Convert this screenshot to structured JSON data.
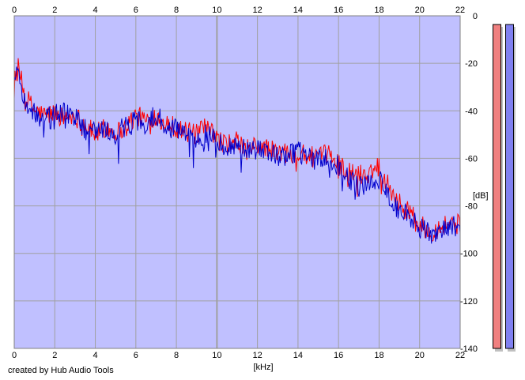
{
  "footer": {
    "credit": "created by Hub Audio Tools"
  },
  "colors": {
    "background": "#ffffff",
    "plot_background": "#c0c0ff",
    "grid": "#a0a0a0",
    "frame": "#808080",
    "left_channel": "#ff0000",
    "right_channel": "#0000cc",
    "left_meter": "#f08080",
    "right_meter": "#8080f0",
    "meter_shadow": "#c0c0c0"
  },
  "chart_data": {
    "type": "area",
    "title": "",
    "xlabel": "[kHz]",
    "ylabel": "[dB]",
    "xlim": [
      0,
      22
    ],
    "ylim": [
      -140,
      0
    ],
    "x_ticks": [
      "0",
      "2",
      "4",
      "6",
      "8",
      "10",
      "12",
      "14",
      "16",
      "18",
      "20",
      "22"
    ],
    "y_ticks": [
      "0",
      "-20",
      "-40",
      "-60",
      "-80",
      "-100",
      "-120",
      "-140"
    ],
    "grid": true,
    "legend": "none",
    "x": [
      0,
      0.2,
      0.5,
      1,
      1.5,
      2,
      2.5,
      3,
      3.5,
      4,
      4.5,
      5,
      5.5,
      6,
      6.5,
      7,
      7.5,
      8,
      8.5,
      9,
      9.5,
      10,
      10.5,
      11,
      11.5,
      12,
      12.5,
      13,
      13.5,
      14,
      14.5,
      15,
      15.5,
      16,
      16.5,
      17,
      17.5,
      18,
      18.5,
      19,
      19.5,
      20,
      20.5,
      21,
      21.5,
      22
    ],
    "series": [
      {
        "values": [
          -25,
          -22,
          -33,
          -40,
          -42,
          -41,
          -43,
          -42,
          -46,
          -50,
          -47,
          -49,
          -47,
          -42,
          -44,
          -42,
          -45,
          -47,
          -49,
          -50,
          -47,
          -52,
          -54,
          -53,
          -56,
          -55,
          -56,
          -58,
          -57,
          -58,
          -59,
          -60,
          -58,
          -62,
          -66,
          -67,
          -66,
          -63,
          -72,
          -79,
          -82,
          -88,
          -91,
          -89,
          -87,
          -88
        ]
      },
      {
        "values": [
          -26,
          -24,
          -36,
          -41,
          -44,
          -40,
          -41,
          -43,
          -48,
          -49,
          -48,
          -50,
          -46,
          -44,
          -45,
          -41,
          -47,
          -48,
          -50,
          -52,
          -49,
          -53,
          -55,
          -54,
          -57,
          -56,
          -57,
          -59,
          -59,
          -57,
          -60,
          -61,
          -60,
          -63,
          -69,
          -72,
          -70,
          -69,
          -76,
          -82,
          -84,
          -89,
          -92,
          -90,
          -88,
          -90
        ]
      }
    ],
    "level_meters": {
      "ylim": [
        -140,
        0
      ],
      "values": [
        0,
        0
      ]
    }
  }
}
